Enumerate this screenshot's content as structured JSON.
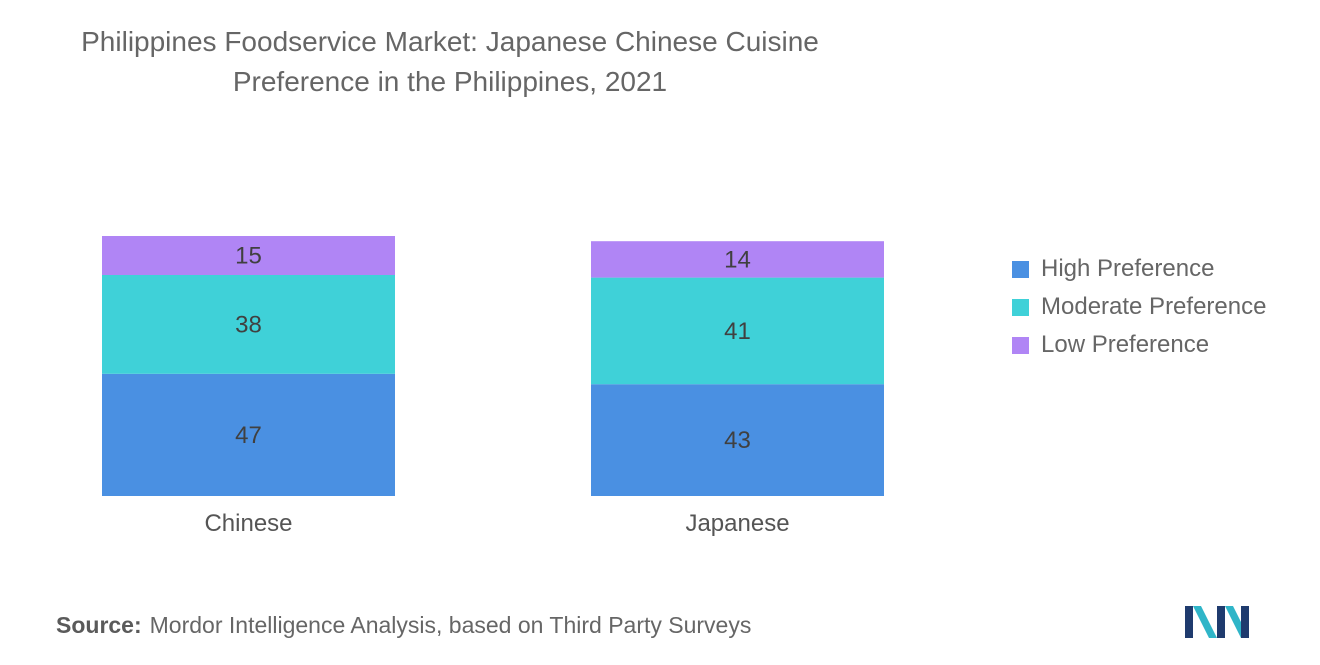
{
  "title": {
    "line1": "Philippines Foodservice Market: Japanese Chinese Cuisine",
    "line2": "Preference in the Philippines, 2021"
  },
  "chart_data": {
    "type": "bar",
    "stacked": true,
    "categories": [
      "Chinese",
      "Japanese"
    ],
    "series": [
      {
        "name": "High Preference",
        "values": [
          47,
          43
        ],
        "color": "#4a90e2"
      },
      {
        "name": "Moderate Preference",
        "values": [
          38,
          41
        ],
        "color": "#3fd1d8"
      },
      {
        "name": "Low Preference",
        "values": [
          15,
          14
        ],
        "color": "#b085f5"
      }
    ],
    "legend_position": "right",
    "grid": false
  },
  "source": {
    "label": "Source:",
    "text": "Mordor Intelligence Analysis, based on Third Party Surveys"
  },
  "logo": {
    "icon": "mordor-intelligence-logo-icon",
    "colors": [
      "#1f3b6e",
      "#2fb5c8"
    ]
  }
}
